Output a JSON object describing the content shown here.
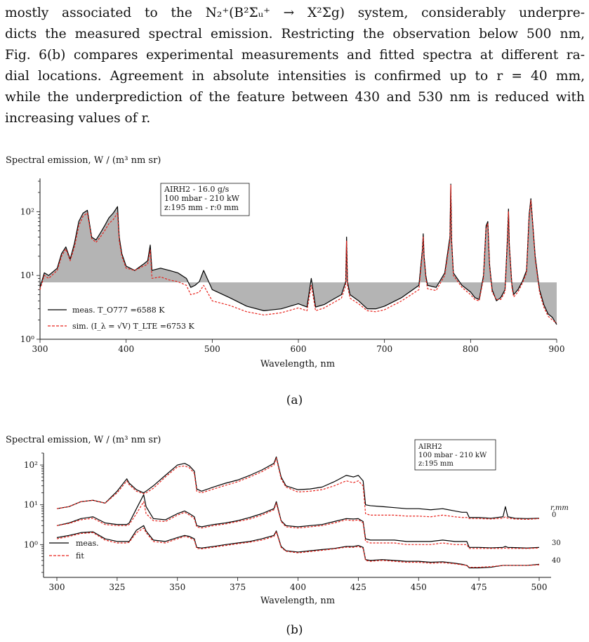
{
  "paragraph": {
    "line1": "mostly associated to the N₂⁺(B²Σᵤ⁺ → X²Σg) system, considerably underpre-",
    "line2": "dicts the measured spectral emission. Restricting the observation below 500 nm,",
    "line3": "Fig. 6(b) compares experimental measurements and fitted spectra at different ra-",
    "line4": "dial locations. Agreement in absolute intensities is confirmed up to r = 40 mm,",
    "line5": "while the underprediction of the feature between 430 and 530 nm is reduced with",
    "line6": "increasing values of r."
  },
  "colors": {
    "measured": "#000000",
    "simulated": "#e8231c",
    "shade": "#b4b4b4"
  },
  "chart_data": [
    {
      "type": "line",
      "panel_label": "(a)",
      "ylabel": "Spectral emission, W / (m³ nm sr)",
      "xlabel": "Wavelength, nm",
      "xlim": [
        300,
        900
      ],
      "ylim": [
        1,
        300
      ],
      "yscale": "log",
      "xticks": [
        300,
        400,
        500,
        600,
        700,
        800,
        900
      ],
      "yticks": [
        "10⁰",
        "10¹",
        "10²"
      ],
      "condition_box": [
        "AIRH2 - 16.0 g/s",
        "100 mbar - 210 kW",
        "z:195 mm - r:0 mm"
      ],
      "shaded_threshold": 7.8,
      "legend_placement": "lower-left",
      "series": [
        {
          "name": "meas. T_O777 =6588 K",
          "style": "solid",
          "x": [
            300,
            305,
            310,
            320,
            325,
            330,
            335,
            340,
            345,
            350,
            355,
            360,
            365,
            370,
            375,
            380,
            385,
            390,
            392,
            395,
            400,
            410,
            420,
            425,
            428,
            430,
            440,
            450,
            460,
            470,
            475,
            480,
            485,
            490,
            500,
            520,
            540,
            560,
            580,
            600,
            610,
            615,
            620,
            630,
            640,
            650,
            655,
            656,
            657,
            660,
            670,
            680,
            690,
            700,
            720,
            740,
            744,
            745,
            746,
            748,
            750,
            760,
            770,
            776,
            777,
            778,
            780,
            790,
            800,
            805,
            810,
            815,
            818,
            820,
            822,
            825,
            830,
            835,
            840,
            843,
            844,
            845,
            848,
            850,
            855,
            860,
            865,
            868,
            870,
            872,
            875,
            880,
            885,
            890,
            895,
            900
          ],
          "y": [
            6.5,
            11,
            10,
            13,
            22,
            28,
            18,
            32,
            70,
            95,
            105,
            40,
            36,
            46,
            60,
            80,
            95,
            120,
            40,
            22,
            14,
            12,
            15,
            17,
            30,
            12,
            13,
            12,
            11,
            9,
            6.5,
            7,
            8,
            12,
            6,
            4.5,
            3.3,
            2.8,
            3,
            3.6,
            3.2,
            9,
            3.2,
            3.5,
            4.2,
            5,
            8,
            40,
            8,
            5,
            4,
            3,
            3,
            3.3,
            4.5,
            7,
            25,
            45,
            20,
            10,
            7,
            6.5,
            11,
            40,
            270,
            35,
            11,
            7,
            5.5,
            4.5,
            4.2,
            10,
            60,
            70,
            15,
            6,
            4,
            4.5,
            6,
            45,
            110,
            30,
            7,
            5,
            6,
            8,
            12,
            90,
            160,
            70,
            20,
            6,
            3.5,
            2.5,
            2.2,
            1.7
          ]
        },
        {
          "name": "sim. (I_λ = √V) T_LTE =6753 K",
          "style": "dashed",
          "x": [
            300,
            305,
            310,
            320,
            325,
            330,
            335,
            340,
            345,
            350,
            355,
            360,
            365,
            370,
            375,
            380,
            385,
            390,
            392,
            395,
            400,
            410,
            420,
            425,
            428,
            430,
            440,
            450,
            460,
            470,
            475,
            480,
            485,
            490,
            500,
            520,
            540,
            560,
            580,
            600,
            610,
            615,
            620,
            630,
            640,
            650,
            655,
            656,
            657,
            660,
            670,
            680,
            690,
            700,
            720,
            740,
            744,
            745,
            746,
            748,
            750,
            760,
            770,
            776,
            777,
            778,
            780,
            790,
            800,
            805,
            810,
            815,
            818,
            820,
            822,
            825,
            830,
            835,
            840,
            843,
            844,
            845,
            848,
            850,
            855,
            860,
            865,
            868,
            870,
            872,
            875,
            880,
            885,
            890,
            895,
            900
          ],
          "y": [
            6,
            10,
            9,
            12,
            20,
            26,
            17,
            28,
            60,
            85,
            95,
            38,
            33,
            40,
            50,
            65,
            75,
            95,
            35,
            20,
            13,
            12,
            14,
            15,
            25,
            9,
            9.5,
            8.5,
            8,
            7,
            5,
            5.2,
            5.5,
            7,
            4,
            3.4,
            2.7,
            2.4,
            2.6,
            3.1,
            2.8,
            7,
            2.8,
            3.1,
            3.7,
            4.4,
            7,
            35,
            7,
            4.4,
            3.6,
            2.8,
            2.7,
            2.9,
            4,
            6,
            22,
            40,
            18,
            9,
            6.2,
            5.8,
            10,
            35,
            260,
            32,
            10,
            6.5,
            5,
            4.2,
            4,
            9,
            55,
            65,
            14,
            5.5,
            4.2,
            4.2,
            5.5,
            40,
            100,
            28,
            6.5,
            4.6,
            5.5,
            7.5,
            11,
            80,
            150,
            65,
            18,
            5.5,
            3.2,
            2.3,
            2,
            1.8
          ]
        }
      ]
    },
    {
      "type": "line",
      "panel_label": "(b)",
      "ylabel": "Spectral emission, W / (m³ nm sr)",
      "xlabel": "Wavelength, nm",
      "xlim": [
        300,
        500
      ],
      "ylim": [
        0.15,
        200
      ],
      "yscale": "log",
      "xticks": [
        300,
        325,
        350,
        375,
        400,
        425,
        450,
        475,
        500
      ],
      "yticks": [
        "10⁰",
        "10¹",
        "10²"
      ],
      "condition_box": [
        "AIRH2",
        "100 mbar - 210 kW",
        "z:195 mm"
      ],
      "legend_placement": "lower-left",
      "legend": [
        "meas.",
        "fit"
      ],
      "radial_header": "r,mm",
      "radial_labels": [
        "0",
        "30",
        "40"
      ],
      "x": [
        300,
        305,
        310,
        315,
        320,
        325,
        329,
        330,
        333,
        336,
        337,
        340,
        345,
        350,
        353,
        355,
        357,
        358,
        360,
        365,
        370,
        375,
        380,
        385,
        390,
        391,
        393,
        395,
        400,
        405,
        410,
        415,
        420,
        423,
        425,
        427,
        428,
        430,
        435,
        440,
        445,
        450,
        455,
        460,
        465,
        468,
        470,
        471,
        475,
        480,
        485,
        486,
        487,
        490,
        495,
        500
      ],
      "series": [
        {
          "name": "meas. r=0",
          "style": "solid",
          "y": [
            8,
            9,
            12,
            13,
            11,
            22,
            45,
            35,
            24,
            20,
            22,
            30,
            55,
            100,
            110,
            95,
            70,
            25,
            22,
            28,
            35,
            42,
            55,
            75,
            110,
            160,
            50,
            30,
            24,
            25,
            28,
            38,
            55,
            50,
            55,
            40,
            10,
            9.5,
            9,
            8.5,
            8,
            8,
            7.5,
            8,
            7,
            6.5,
            6.5,
            4.8,
            4.8,
            4.6,
            5,
            9,
            5,
            4.6,
            4.5,
            4.6
          ]
        },
        {
          "name": "fit r=0",
          "style": "dashed",
          "y": [
            8,
            9,
            12,
            13,
            11,
            20,
            40,
            32,
            22,
            19,
            20,
            26,
            50,
            90,
            95,
            85,
            62,
            22,
            20,
            25,
            31,
            38,
            50,
            68,
            100,
            150,
            45,
            28,
            21,
            22,
            24,
            30,
            40,
            36,
            40,
            30,
            6,
            5.5,
            5.5,
            5.5,
            5.2,
            5.2,
            5,
            5.5,
            5,
            4.8,
            4.8,
            4.5,
            4.5,
            4.4,
            4.6,
            5,
            4.6,
            4.4,
            4.3,
            4.5
          ]
        },
        {
          "name": "meas. r=30",
          "style": "solid",
          "y": [
            3,
            3.5,
            4.5,
            5,
            3.5,
            3.2,
            3.2,
            3.5,
            8,
            18,
            9,
            4.5,
            4.2,
            6,
            7,
            6,
            5,
            3,
            2.8,
            3.2,
            3.5,
            4,
            4.8,
            6,
            8,
            12,
            4,
            3,
            2.8,
            3,
            3.2,
            3.8,
            4.5,
            4.4,
            4.5,
            3.8,
            1.4,
            1.3,
            1.3,
            1.3,
            1.2,
            1.2,
            1.2,
            1.3,
            1.2,
            1.2,
            1.2,
            0.85,
            0.85,
            0.83,
            0.85,
            0.9,
            0.85,
            0.84,
            0.82,
            0.85
          ]
        },
        {
          "name": "fit r=30",
          "style": "dashed",
          "y": [
            3,
            3.4,
            4.2,
            4.6,
            3.2,
            3,
            3,
            3.2,
            6,
            12,
            6,
            4,
            3.8,
            5.5,
            6.5,
            5.5,
            4.5,
            2.8,
            2.6,
            3,
            3.3,
            3.8,
            4.4,
            5.5,
            7.5,
            11,
            3.8,
            2.8,
            2.6,
            2.8,
            3,
            3.5,
            4.2,
            4,
            4.2,
            3.5,
            1.2,
            1.1,
            1.1,
            1.1,
            1,
            1,
            1,
            1.1,
            1,
            1,
            1,
            0.8,
            0.8,
            0.8,
            0.8,
            0.82,
            0.8,
            0.8,
            0.8,
            0.82
          ]
        },
        {
          "name": "meas. r=40",
          "style": "solid",
          "y": [
            1.5,
            1.7,
            2,
            2.1,
            1.4,
            1.2,
            1.2,
            1.2,
            2.3,
            3,
            2.2,
            1.3,
            1.2,
            1.5,
            1.7,
            1.6,
            1.4,
            0.85,
            0.82,
            0.9,
            1,
            1.1,
            1.2,
            1.4,
            1.7,
            2.2,
            0.9,
            0.7,
            0.65,
            0.7,
            0.75,
            0.8,
            0.9,
            0.9,
            0.95,
            0.85,
            0.42,
            0.4,
            0.42,
            0.4,
            0.38,
            0.38,
            0.36,
            0.37,
            0.34,
            0.32,
            0.3,
            0.26,
            0.26,
            0.27,
            0.3,
            0.3,
            0.3,
            0.3,
            0.3,
            0.32
          ]
        },
        {
          "name": "fit r=40",
          "style": "dashed",
          "y": [
            1.4,
            1.6,
            1.9,
            2,
            1.3,
            1.1,
            1.1,
            1.15,
            2,
            2.6,
            2,
            1.2,
            1.1,
            1.4,
            1.6,
            1.5,
            1.3,
            0.8,
            0.78,
            0.86,
            0.95,
            1.05,
            1.15,
            1.3,
            1.6,
            2.1,
            0.85,
            0.68,
            0.62,
            0.67,
            0.72,
            0.78,
            0.86,
            0.85,
            0.9,
            0.8,
            0.4,
            0.38,
            0.4,
            0.38,
            0.36,
            0.36,
            0.34,
            0.35,
            0.33,
            0.31,
            0.3,
            0.27,
            0.27,
            0.28,
            0.3,
            0.3,
            0.3,
            0.3,
            0.3,
            0.31
          ]
        }
      ]
    }
  ]
}
